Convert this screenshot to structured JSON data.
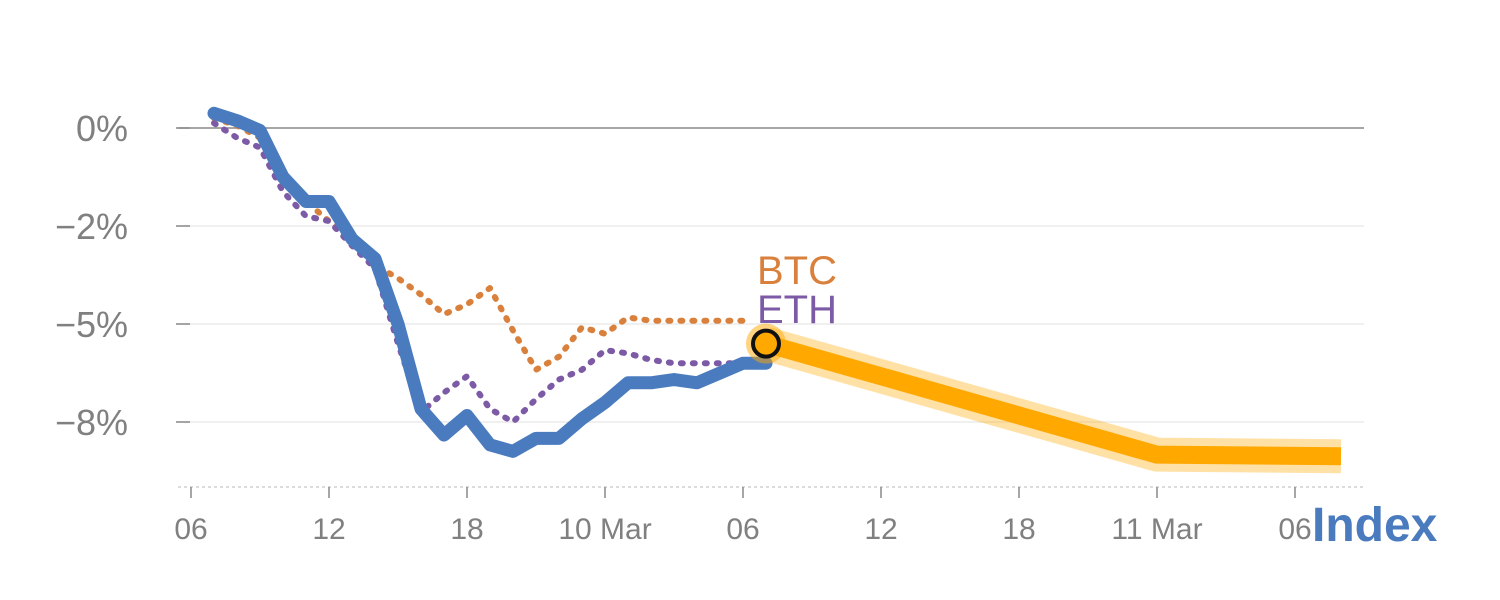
{
  "chart_data": {
    "type": "line",
    "y_ticks": [
      {
        "value": 0,
        "label": "0%"
      },
      {
        "value": -2,
        "label": "−2%"
      },
      {
        "value": -5,
        "label": "−5%"
      },
      {
        "value": -8,
        "label": "−8%"
      }
    ],
    "x_ticks": [
      "06",
      "12",
      "18",
      "10 Mar",
      "06",
      "12",
      "18",
      "11 Mar",
      "06"
    ],
    "x_tick_values": [
      0,
      6,
      12,
      18,
      24,
      30,
      36,
      42,
      48
    ],
    "xlim": [
      0,
      51
    ],
    "grid": true,
    "series": [
      {
        "name": "BTC",
        "color": "#d9813c",
        "style": "dotted",
        "x": [
          1,
          2,
          3,
          4,
          5,
          6,
          7,
          8,
          9,
          10,
          11,
          12,
          13,
          14,
          15,
          16,
          17,
          18,
          19,
          20,
          21,
          22,
          23,
          24
        ],
        "y": [
          0.2,
          0.05,
          -0.2,
          -0.9,
          -1.5,
          -1.9,
          -2.3,
          -3.2,
          -3.6,
          -4.1,
          -4.7,
          -4.4,
          -3.9,
          -5.2,
          -6.4,
          -6.0,
          -5.1,
          -5.3,
          -4.8,
          -4.9,
          -4.9,
          -4.9,
          -4.9,
          -4.9
        ]
      },
      {
        "name": "ETH",
        "color": "#7c5aa6",
        "style": "dotted",
        "x": [
          1,
          2,
          3,
          4,
          5,
          6,
          7,
          8,
          9,
          10,
          11,
          12,
          13,
          14,
          15,
          16,
          17,
          18,
          19,
          20,
          21,
          22,
          23,
          24
        ],
        "y": [
          0.1,
          -0.2,
          -0.4,
          -1.3,
          -1.8,
          -1.9,
          -2.6,
          -3.3,
          -5.6,
          -7.7,
          -7.1,
          -6.6,
          -7.6,
          -8.0,
          -7.3,
          -6.7,
          -6.4,
          -5.8,
          -5.9,
          -6.1,
          -6.2,
          -6.2,
          -6.2,
          -6.2
        ]
      },
      {
        "name": "Index",
        "color": "#4a7bbf",
        "style": "solid",
        "x": [
          1,
          2,
          3,
          4,
          5,
          6,
          7,
          8,
          9,
          10,
          11,
          12,
          13,
          14,
          15,
          16,
          17,
          18,
          19,
          20,
          21,
          22,
          23,
          24,
          25
        ],
        "y": [
          0.3,
          0.15,
          -0.05,
          -1.0,
          -1.5,
          -1.5,
          -2.4,
          -3.0,
          -5.0,
          -7.6,
          -8.4,
          -7.8,
          -8.7,
          -8.9,
          -8.5,
          -8.5,
          -7.9,
          -7.4,
          -6.8,
          -6.8,
          -6.7,
          -6.8,
          -6.5,
          -6.2,
          -6.2
        ]
      }
    ],
    "projection": {
      "color": "#ffa800",
      "x": [
        25,
        42,
        50
      ],
      "y": [
        -5.6,
        -9.0,
        -9.05
      ]
    },
    "series_labels": [
      "BTC",
      "ETH"
    ],
    "index_label": "Index"
  }
}
